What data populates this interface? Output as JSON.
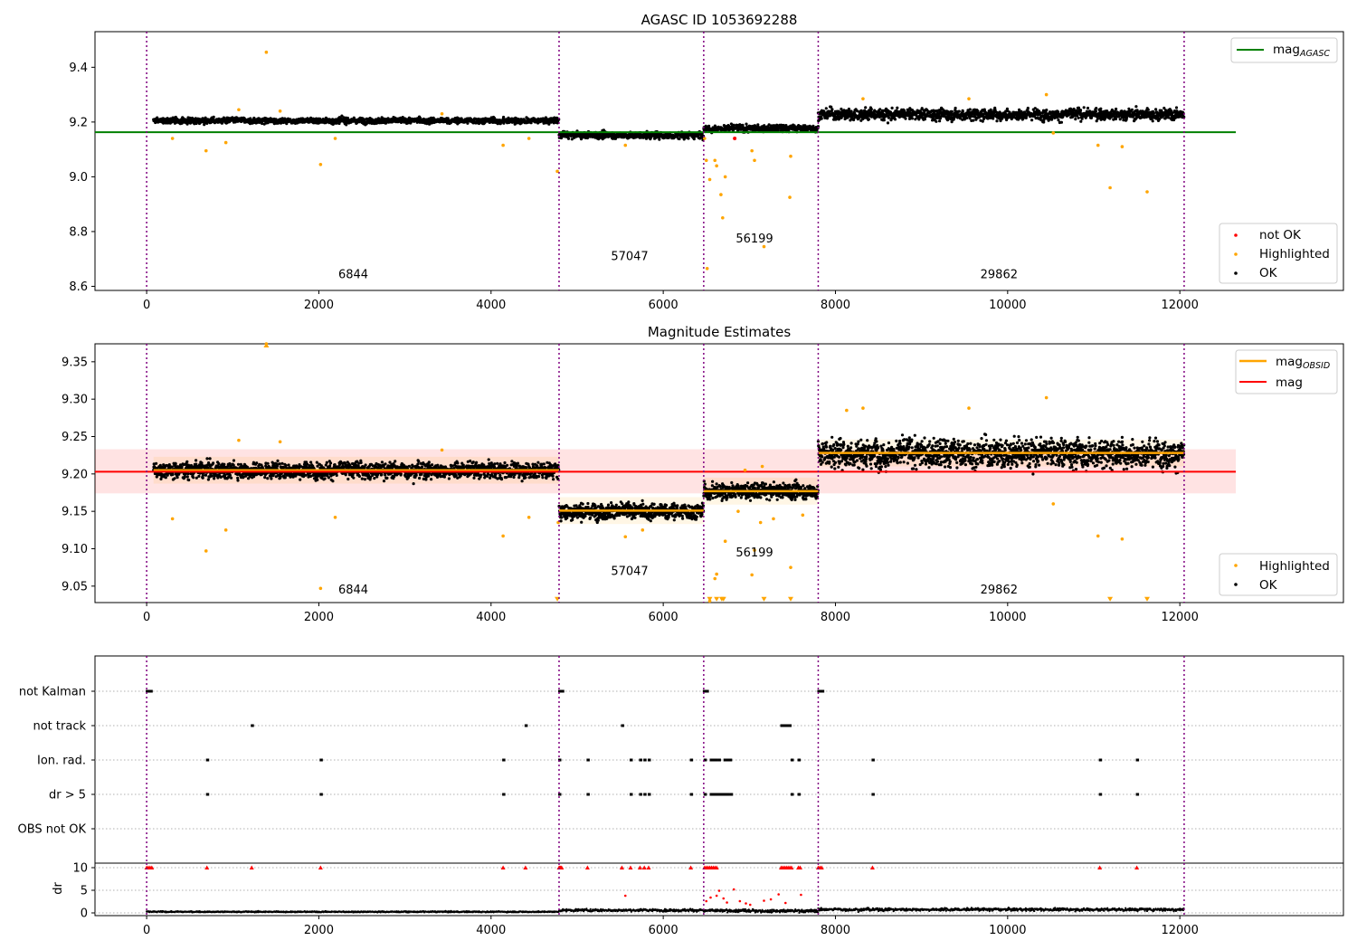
{
  "chart_data": [
    {
      "type": "scatter",
      "title": "AGASC ID 1053692288",
      "xlabel": "",
      "ylabel": "",
      "xlim": [
        -600,
        13900
      ],
      "ylim": [
        8.585,
        9.53
      ],
      "xticks": [
        "0",
        "2000",
        "4000",
        "6000",
        "8000",
        "10000",
        "12000"
      ],
      "yticks": [
        "8.6",
        "8.8",
        "9.0",
        "9.2",
        "9.4"
      ],
      "obs_boundaries": [
        0,
        4790,
        6470,
        7800,
        12050
      ],
      "segment_labels": [
        {
          "text": "6844",
          "x": 2400,
          "y": 8.63
        },
        {
          "text": "57047",
          "x": 5610,
          "y": 8.695
        },
        {
          "text": "56199",
          "x": 7060,
          "y": 8.76
        },
        {
          "text": "29862",
          "x": 9900,
          "y": 8.63
        }
      ],
      "series": [
        {
          "name": "mag",
          "sub": "AGASC",
          "kind": "hline",
          "color": "#008000",
          "y": 9.163,
          "x_range": [
            0,
            12650
          ]
        }
      ],
      "scatter_legend": [
        {
          "name": "not OK",
          "color": "#ff0000"
        },
        {
          "name": "Highlighted",
          "color": "#ffa500"
        },
        {
          "name": "OK",
          "color": "#000000"
        }
      ],
      "obs_levels": [
        {
          "x": [
            80,
            4790
          ],
          "mean": 9.205,
          "noise": 0.01
        },
        {
          "x": [
            4790,
            6470
          ],
          "mean": 9.152,
          "noise": 0.012
        },
        {
          "x": [
            6470,
            7800
          ],
          "mean": 9.177,
          "noise": 0.012
        },
        {
          "x": [
            7800,
            12050
          ],
          "mean": 9.228,
          "noise": 0.02
        }
      ],
      "highlighted_points": [
        [
          1390,
          9.455
        ],
        [
          690,
          9.095
        ],
        [
          2020,
          9.045
        ],
        [
          4140,
          9.115
        ],
        [
          4440,
          9.14
        ],
        [
          920,
          9.125
        ],
        [
          300,
          9.14
        ],
        [
          1070,
          9.245
        ],
        [
          1550,
          9.24
        ],
        [
          2190,
          9.14
        ],
        [
          3430,
          9.23
        ],
        [
          10450,
          9.3
        ],
        [
          11050,
          9.115
        ],
        [
          11190,
          8.96
        ],
        [
          11330,
          9.11
        ],
        [
          11620,
          8.945
        ],
        [
          10530,
          9.16
        ],
        [
          8320,
          9.285
        ],
        [
          9550,
          9.285
        ],
        [
          6510,
          8.665
        ],
        [
          6540,
          8.99
        ],
        [
          6600,
          9.06
        ],
        [
          6620,
          9.04
        ],
        [
          6670,
          8.935
        ],
        [
          6690,
          8.85
        ],
        [
          6720,
          9.0
        ],
        [
          7060,
          9.06
        ],
        [
          7030,
          9.095
        ],
        [
          7170,
          8.745
        ],
        [
          7470,
          8.925
        ],
        [
          7480,
          9.075
        ],
        [
          6480,
          9.14
        ],
        [
          6500,
          9.06
        ],
        [
          5560,
          9.115
        ],
        [
          4770,
          9.02
        ]
      ],
      "notok_points": [
        [
          6830,
          9.14
        ]
      ]
    },
    {
      "type": "scatter",
      "title": "Magnitude Estimates",
      "xlabel": "",
      "ylabel": "",
      "xlim": [
        -600,
        13900
      ],
      "ylim": [
        9.028,
        9.374
      ],
      "xticks": [
        "0",
        "2000",
        "4000",
        "6000",
        "8000",
        "10000",
        "12000"
      ],
      "yticks": [
        "9.05",
        "9.10",
        "9.15",
        "9.20",
        "9.25",
        "9.30",
        "9.35"
      ],
      "obs_boundaries": [
        0,
        4790,
        6470,
        7800,
        12050
      ],
      "segment_labels": [
        {
          "text": "6844",
          "x": 2400,
          "y": 9.04
        },
        {
          "text": "57047",
          "x": 5610,
          "y": 9.065
        },
        {
          "text": "56199",
          "x": 7060,
          "y": 9.09
        },
        {
          "text": "29862",
          "x": 9900,
          "y": 9.04
        }
      ],
      "series": [
        {
          "name": "mag",
          "sub": "OBSID",
          "kind": "step",
          "color": "#ffa500",
          "steps": [
            [
              80,
              4790,
              9.205
            ],
            [
              4790,
              6470,
              9.151
            ],
            [
              6470,
              7800,
              9.177
            ],
            [
              7800,
              12050,
              9.228
            ]
          ],
          "band_halfwidth": 0.018
        },
        {
          "name": "mag",
          "sub": "",
          "kind": "hline",
          "color": "#ff0000",
          "y": 9.203,
          "x_range": [
            0,
            12650
          ],
          "band": [
            9.174,
            9.233
          ]
        }
      ],
      "scatter_legend": [
        {
          "name": "Highlighted",
          "color": "#ffa500"
        },
        {
          "name": "OK",
          "color": "#000000"
        }
      ],
      "obs_levels": [
        {
          "x": [
            80,
            4790
          ],
          "mean": 9.205,
          "noise": 0.01
        },
        {
          "x": [
            4790,
            6470
          ],
          "mean": 9.15,
          "noise": 0.01
        },
        {
          "x": [
            6470,
            7800
          ],
          "mean": 9.177,
          "noise": 0.01
        },
        {
          "x": [
            7800,
            12050
          ],
          "mean": 9.228,
          "noise": 0.018
        }
      ],
      "highlighted_points": [
        [
          1390,
          9.374
        ],
        [
          690,
          9.097
        ],
        [
          2020,
          9.047
        ],
        [
          4140,
          9.117
        ],
        [
          4440,
          9.142
        ],
        [
          920,
          9.125
        ],
        [
          300,
          9.14
        ],
        [
          1070,
          9.245
        ],
        [
          1550,
          9.243
        ],
        [
          2190,
          9.142
        ],
        [
          3430,
          9.232
        ],
        [
          10450,
          9.302
        ],
        [
          11050,
          9.117
        ],
        [
          11330,
          9.113
        ],
        [
          10530,
          9.16
        ],
        [
          8320,
          9.288
        ],
        [
          9550,
          9.288
        ],
        [
          8130,
          9.285
        ],
        [
          5560,
          9.116
        ],
        [
          5760,
          9.125
        ],
        [
          6540,
          9.03
        ],
        [
          6600,
          9.06
        ],
        [
          6620,
          9.066
        ],
        [
          6720,
          9.11
        ],
        [
          6870,
          9.15
        ],
        [
          7030,
          9.065
        ],
        [
          7060,
          9.098
        ],
        [
          7130,
          9.135
        ],
        [
          7280,
          9.14
        ],
        [
          7480,
          9.075
        ],
        [
          7620,
          9.145
        ],
        [
          4780,
          9.135
        ],
        [
          6950,
          9.205
        ],
        [
          7150,
          9.21
        ]
      ],
      "triangle_points": [
        [
          1390,
          9.374
        ],
        [
          4770,
          9.032
        ],
        [
          6540,
          9.032
        ],
        [
          6620,
          9.032
        ],
        [
          6680,
          9.032
        ],
        [
          6700,
          9.032
        ],
        [
          7170,
          9.032
        ],
        [
          7480,
          9.032
        ],
        [
          11190,
          9.032
        ],
        [
          11620,
          9.032
        ]
      ]
    },
    {
      "type": "scatter",
      "title": "",
      "xlabel": "",
      "ylabel": "",
      "xlim": [
        -600,
        13900
      ],
      "flag_labels": [
        "not Kalman",
        "not track",
        "Ion. rad.",
        "dr > 5",
        "OBS not OK"
      ],
      "obs_boundaries": [
        0,
        4790,
        6470,
        7800,
        12050
      ],
      "flags": {
        "not Kalman": [
          [
            0,
            60
          ],
          [
            4790,
            4840
          ],
          [
            6470,
            6520
          ],
          [
            7800,
            7860
          ]
        ],
        "not track": [
          [
            1220,
            1220
          ],
          [
            4400,
            4400
          ],
          [
            5520,
            5520
          ],
          [
            7370,
            7480
          ]
        ],
        "Ion. rad.": [
          [
            700,
            700
          ],
          [
            2020,
            2020
          ],
          [
            4140,
            4140
          ],
          [
            4790,
            4790
          ],
          [
            5120,
            5120
          ],
          [
            5620,
            5620
          ],
          [
            5730,
            5730
          ],
          [
            5780,
            5780
          ],
          [
            5830,
            5830
          ],
          [
            6320,
            6320
          ],
          [
            6480,
            6480
          ],
          [
            6550,
            6620
          ],
          [
            6640,
            6660
          ],
          [
            6710,
            6740
          ],
          [
            6760,
            6790
          ],
          [
            7490,
            7490
          ],
          [
            7570,
            7580
          ],
          [
            8430,
            8430
          ],
          [
            11070,
            11070
          ],
          [
            11500,
            11500
          ]
        ],
        "dr > 5": [
          [
            700,
            700
          ],
          [
            2020,
            2020
          ],
          [
            4140,
            4140
          ],
          [
            4790,
            4790
          ],
          [
            5120,
            5120
          ],
          [
            5620,
            5620
          ],
          [
            5730,
            5730
          ],
          [
            5780,
            5780
          ],
          [
            5830,
            5830
          ],
          [
            6320,
            6320
          ],
          [
            6480,
            6480
          ],
          [
            6550,
            6760
          ],
          [
            6780,
            6800
          ],
          [
            7490,
            7490
          ],
          [
            7570,
            7580
          ],
          [
            8430,
            8430
          ],
          [
            11070,
            11070
          ],
          [
            11500,
            11500
          ]
        ],
        "OBS not OK": []
      }
    },
    {
      "type": "scatter",
      "title": "",
      "xlabel": "",
      "ylabel": "dr",
      "xlim": [
        -600,
        13900
      ],
      "ylim": [
        -0.6,
        11
      ],
      "xticks": [
        "0",
        "2000",
        "4000",
        "6000",
        "8000",
        "10000",
        "12000"
      ],
      "yticks": [
        "0",
        "5",
        "10"
      ],
      "obs_boundaries": [
        0,
        4790,
        6470,
        7800,
        12050
      ],
      "obs_levels": [
        {
          "x": [
            0,
            4790
          ],
          "mean": 0.25,
          "noise": 0.12
        },
        {
          "x": [
            4790,
            6470
          ],
          "mean": 0.6,
          "noise": 0.25
        },
        {
          "x": [
            6470,
            7800
          ],
          "mean": 0.45,
          "noise": 0.3
        },
        {
          "x": [
            7800,
            12050
          ],
          "mean": 0.75,
          "noise": 0.3
        }
      ],
      "clipped_x": [
        0,
        20,
        40,
        60,
        700,
        1220,
        2020,
        4140,
        4400,
        4790,
        4800,
        4810,
        4820,
        5120,
        5520,
        5620,
        5730,
        5780,
        5830,
        6320,
        6480,
        6500,
        6520,
        6540,
        6560,
        6580,
        6600,
        6620,
        7370,
        7390,
        7410,
        7430,
        7450,
        7470,
        7490,
        7570,
        7590,
        7800,
        7820,
        7840,
        8430,
        11070,
        11500
      ],
      "outliers": [
        [
          5560,
          3.8
        ],
        [
          6500,
          2.6
        ],
        [
          6550,
          3.4
        ],
        [
          6620,
          3.8
        ],
        [
          6650,
          4.9
        ],
        [
          6700,
          3.2
        ],
        [
          6820,
          5.2
        ],
        [
          6890,
          2.6
        ],
        [
          7010,
          1.8
        ],
        [
          7170,
          2.7
        ],
        [
          7250,
          3.0
        ],
        [
          7340,
          4.1
        ],
        [
          7420,
          2.2
        ],
        [
          7600,
          4.0
        ],
        [
          6740,
          2.3
        ],
        [
          6960,
          2.1
        ]
      ]
    }
  ]
}
